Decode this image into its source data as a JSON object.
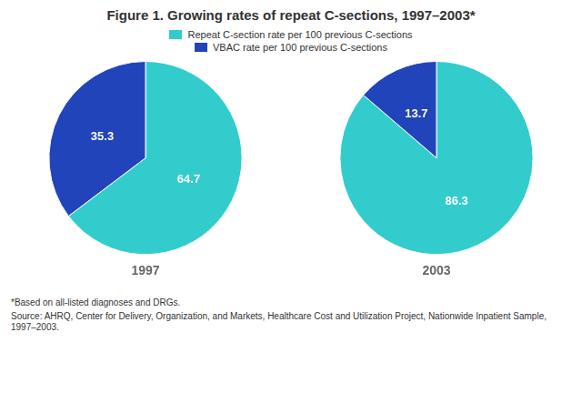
{
  "chart_data": [
    {
      "type": "pie",
      "title": "Figure 1. Growing rates of repeat C-sections, 1997–2003*",
      "subtitle": "1997",
      "categories": [
        "Repeat C-section rate per 100 previous C-sections",
        "VBAC rate per 100 previous C-sections"
      ],
      "values": [
        64.7,
        35.3
      ],
      "colors": [
        "#33CCCC",
        "#2244BB"
      ],
      "legend": "top",
      "data_labels": true
    },
    {
      "type": "pie",
      "subtitle": "2003",
      "categories": [
        "Repeat C-section rate per 100 previous C-sections",
        "VBAC rate per 100 previous C-sections"
      ],
      "values": [
        86.3,
        13.7
      ],
      "colors": [
        "#33CCCC",
        "#2244BB"
      ],
      "data_labels": true,
      "annotations": [
        "*Based on all-listed diagnoses and DRGs.",
        "Source: AHRQ, Center for Delivery, Organization, and Markets, Healthcare Cost and Utilization Project, Nationwide Inpatient Sample,\n1997–2003."
      ]
    }
  ]
}
